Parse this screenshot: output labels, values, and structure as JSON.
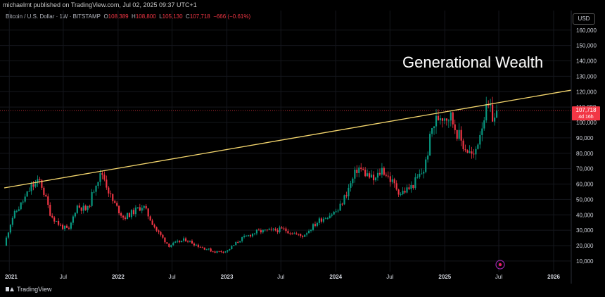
{
  "header": {
    "publish_line": "michaelmt published on TradingView.com, Jul 02, 2025 09:37 UTC+1"
  },
  "legend": {
    "symbol": "Bitcoin / U.S. Dollar · 1W · BITSTAMP",
    "o_label": "O",
    "o_value": "108,389",
    "h_label": "H",
    "h_value": "108,800",
    "l_label": "L",
    "l_value": "105,130",
    "c_label": "C",
    "c_value": "107,718",
    "change": "−666 (−0.61%)"
  },
  "currency_button": "USD",
  "annotation": "Generational Wealth",
  "brand": "TradingView",
  "price_tag": {
    "value": "107,718",
    "countdown": "4d 16h"
  },
  "colors": {
    "up": "#089981",
    "down": "#f23645",
    "trendline": "#f5d76e",
    "background": "#000000",
    "price_line": "#f23645"
  },
  "chart_data": {
    "type": "candlestick",
    "interval": "1W",
    "x_axis": {
      "range": [
        "2020-12-15",
        "2026-03-01"
      ],
      "ticks": [
        {
          "date": "2021-01-01",
          "label": "2021",
          "bold": true
        },
        {
          "date": "2021-07-01",
          "label": "Jul",
          "bold": false
        },
        {
          "date": "2022-01-01",
          "label": "2022",
          "bold": true
        },
        {
          "date": "2022-07-01",
          "label": "Jul",
          "bold": false
        },
        {
          "date": "2023-01-01",
          "label": "2023",
          "bold": true
        },
        {
          "date": "2023-07-01",
          "label": "Jul",
          "bold": false
        },
        {
          "date": "2024-01-01",
          "label": "2024",
          "bold": true
        },
        {
          "date": "2024-07-01",
          "label": "Jul",
          "bold": false
        },
        {
          "date": "2025-01-01",
          "label": "2025",
          "bold": true
        },
        {
          "date": "2025-07-01",
          "label": "Jul",
          "bold": false
        },
        {
          "date": "2026-01-01",
          "label": "2026",
          "bold": true
        }
      ]
    },
    "y_axis": {
      "range": [
        4000,
        164000
      ],
      "ticks": [
        10000,
        20000,
        30000,
        40000,
        50000,
        60000,
        70000,
        80000,
        90000,
        100000,
        110000,
        120000,
        130000,
        140000,
        150000,
        160000
      ],
      "tick_labels": [
        "10,000",
        "20,000",
        "30,000",
        "40,000",
        "50,000",
        "60,000",
        "70,000",
        "80,000",
        "90,000",
        "100,000",
        "110,000",
        "120,000",
        "130,000",
        "140,000",
        "150,000",
        "160,000"
      ]
    },
    "grid": true,
    "current_price": 107718,
    "trendline": {
      "start": {
        "date": "2020-12-15",
        "price": 57500
      },
      "end": {
        "date": "2026-03-01",
        "price": 121000
      }
    },
    "path": [
      {
        "date": "2020-12-15",
        "close": 20000
      },
      {
        "date": "2021-01-10",
        "close": 38000
      },
      {
        "date": "2021-02-20",
        "close": 50000
      },
      {
        "date": "2021-03-15",
        "close": 58000
      },
      {
        "date": "2021-04-15",
        "close": 62000
      },
      {
        "date": "2021-05-20",
        "close": 40000
      },
      {
        "date": "2021-06-20",
        "close": 33000
      },
      {
        "date": "2021-07-20",
        "close": 30000
      },
      {
        "date": "2021-08-15",
        "close": 46000
      },
      {
        "date": "2021-09-20",
        "close": 43000
      },
      {
        "date": "2021-10-20",
        "close": 62000
      },
      {
        "date": "2021-11-10",
        "close": 67000
      },
      {
        "date": "2021-12-10",
        "close": 50000
      },
      {
        "date": "2022-01-20",
        "close": 38000
      },
      {
        "date": "2022-03-25",
        "close": 46000
      },
      {
        "date": "2022-05-10",
        "close": 30000
      },
      {
        "date": "2022-06-20",
        "close": 20000
      },
      {
        "date": "2022-08-15",
        "close": 24000
      },
      {
        "date": "2022-10-01",
        "close": 19500
      },
      {
        "date": "2022-11-20",
        "close": 16000
      },
      {
        "date": "2023-01-01",
        "close": 16500
      },
      {
        "date": "2023-02-15",
        "close": 24000
      },
      {
        "date": "2023-04-10",
        "close": 29000
      },
      {
        "date": "2023-07-10",
        "close": 30500
      },
      {
        "date": "2023-09-10",
        "close": 26000
      },
      {
        "date": "2023-11-10",
        "close": 37000
      },
      {
        "date": "2024-01-10",
        "close": 43000
      },
      {
        "date": "2024-02-25",
        "close": 62000
      },
      {
        "date": "2024-03-15",
        "close": 71000
      },
      {
        "date": "2024-05-10",
        "close": 62000
      },
      {
        "date": "2024-06-05",
        "close": 70000
      },
      {
        "date": "2024-08-05",
        "close": 54000
      },
      {
        "date": "2024-09-10",
        "close": 58000
      },
      {
        "date": "2024-10-25",
        "close": 70000
      },
      {
        "date": "2024-11-20",
        "close": 97000
      },
      {
        "date": "2024-12-15",
        "close": 105000
      },
      {
        "date": "2025-01-20",
        "close": 104000
      },
      {
        "date": "2025-03-01",
        "close": 86000
      },
      {
        "date": "2025-04-08",
        "close": 77000
      },
      {
        "date": "2025-05-10",
        "close": 103000
      },
      {
        "date": "2025-05-25",
        "close": 109000
      },
      {
        "date": "2025-06-22",
        "close": 101000
      },
      {
        "date": "2025-06-29",
        "close": 107718
      }
    ]
  }
}
